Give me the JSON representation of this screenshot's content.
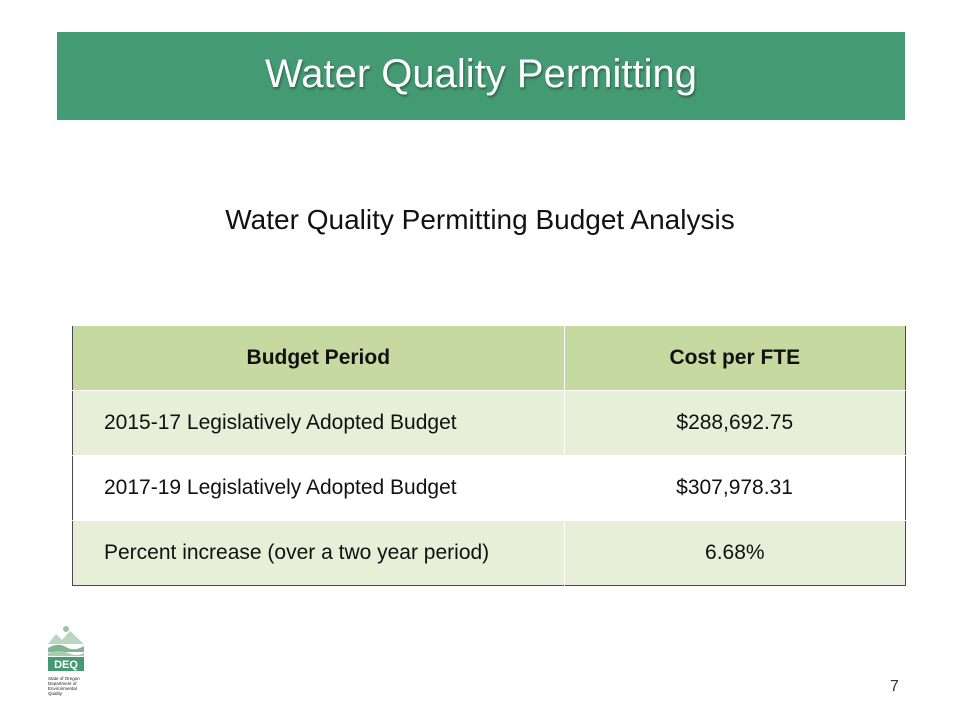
{
  "slide": {
    "title": "Water Quality Permitting",
    "subtitle": "Water Quality Permitting Budget Analysis",
    "page_number": "7"
  },
  "table": {
    "headers": [
      "Budget Period",
      "Cost per FTE"
    ],
    "rows": [
      [
        "2015-17 Legislatively Adopted Budget",
        "$288,692.75"
      ],
      [
        "2017-19 Legislatively Adopted Budget",
        "$307,978.31"
      ],
      [
        "Percent increase (over a two year period)",
        "6.68%"
      ]
    ]
  },
  "logo": {
    "acronym": "DEQ",
    "caption": [
      "State of Oregon",
      "Department of",
      "Environmental",
      "Quality"
    ]
  },
  "colors": {
    "title_bar": "#449a72",
    "header_row": "#c6d9a0",
    "band_row": "#e7efd9"
  }
}
